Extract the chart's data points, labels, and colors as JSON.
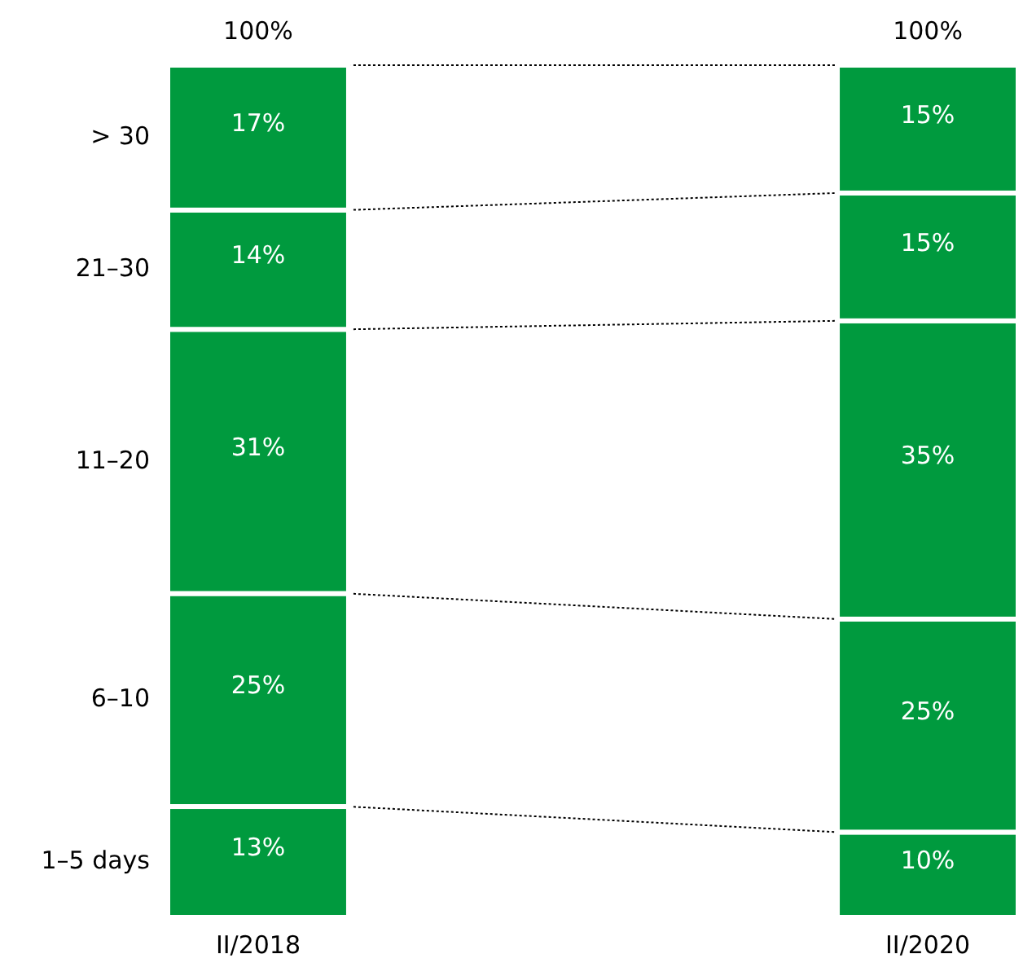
{
  "chart_data": {
    "type": "bar",
    "stacked": true,
    "categories": [
      "II/2018",
      "II/2020"
    ],
    "series": [
      {
        "name": "1–5 days",
        "color": "#009a3e",
        "values": [
          13,
          10
        ],
        "value_labels": [
          "13%",
          "10%"
        ]
      },
      {
        "name": "6–10",
        "color": "#009a3e",
        "values": [
          25,
          25
        ],
        "value_labels": [
          "25%",
          "25%"
        ]
      },
      {
        "name": "11–20",
        "color": "#009a3e",
        "values": [
          31,
          35
        ],
        "value_labels": [
          "31%",
          "35%"
        ]
      },
      {
        "name": "21–30",
        "color": "#009a3e",
        "values": [
          14,
          15
        ],
        "value_labels": [
          "14%",
          "15%"
        ]
      },
      {
        "name": "> 30",
        "color": "#009a3e",
        "values": [
          17,
          15
        ],
        "value_labels": [
          "17%",
          "15%"
        ]
      }
    ],
    "totals": [
      "100%",
      "100%"
    ]
  }
}
